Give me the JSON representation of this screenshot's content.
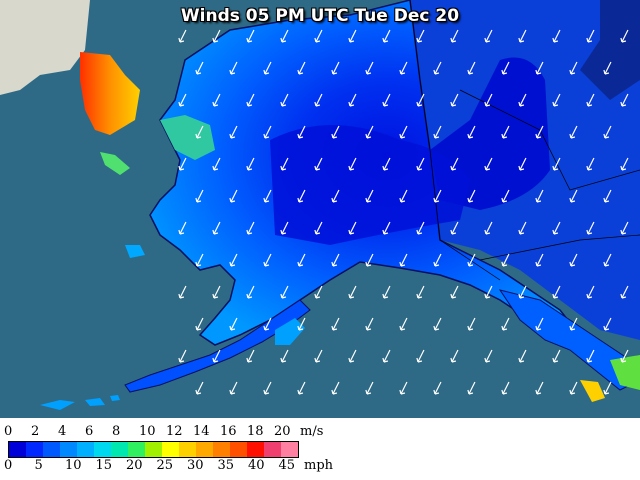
{
  "map": {
    "title": "Winds 05 PM UTC Tue Dec 20",
    "colors": {
      "ocean": "#2e6a86",
      "land_dark": "#0a1a6b",
      "canada_land": "#1b3a9a"
    }
  },
  "legend": {
    "ms_unit": "m/s",
    "mph_unit": "mph",
    "ms_labels": [
      "0",
      "2",
      "4",
      "6",
      "8",
      "10",
      "12",
      "14",
      "16",
      "18",
      "20"
    ],
    "mph_labels": [
      "0",
      "5",
      "10",
      "15",
      "20",
      "25",
      "30",
      "35",
      "40",
      "45"
    ],
    "colors": [
      "#0000d8",
      "#0028ff",
      "#0058ff",
      "#0088ff",
      "#00b0ff",
      "#00d8f0",
      "#00e8b0",
      "#30f060",
      "#a0f000",
      "#ffff00",
      "#ffd000",
      "#ffa800",
      "#ff8000",
      "#ff5000",
      "#ff1000",
      "#f04070",
      "#ff80a0"
    ]
  }
}
